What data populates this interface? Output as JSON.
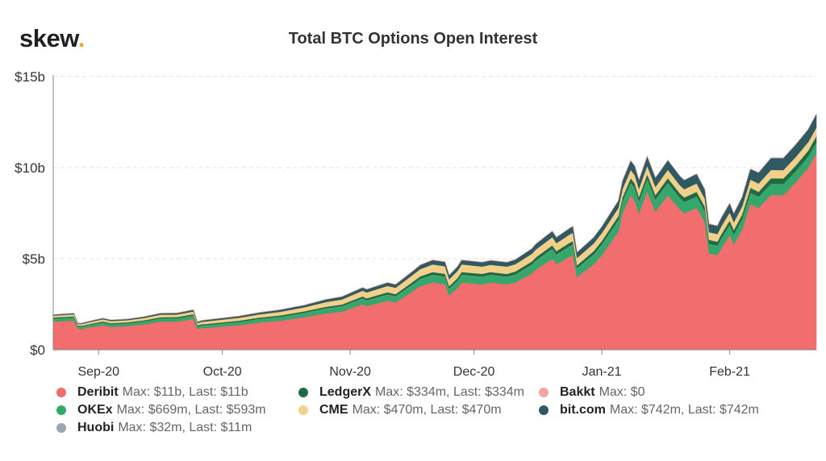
{
  "logo": {
    "text": "skew",
    "dot": "."
  },
  "chart_data": {
    "type": "area",
    "stacked": true,
    "title": "Total BTC Options Open Interest",
    "y_ticks": [
      "$0",
      "$5b",
      "$10b",
      "$15b"
    ],
    "y_tick_values": [
      0,
      5,
      10,
      15
    ],
    "ylim": [
      0,
      15
    ],
    "y_unit": "billions USD",
    "x_ticks": [
      "Sep-20",
      "Oct-20",
      "Nov-20",
      "Dec-20",
      "Jan-21",
      "Feb-21"
    ],
    "x_tick_dates": [
      "2020-09-01",
      "2020-10-01",
      "2020-11-01",
      "2020-12-01",
      "2021-01-01",
      "2021-02-01"
    ],
    "xlim": [
      "2020-08-21",
      "2021-02-22"
    ],
    "grid": true,
    "legend_position": "bottom",
    "x": [
      "2020-08-21",
      "2020-08-26",
      "2020-08-27",
      "2020-08-28",
      "2020-08-29",
      "2020-09-02",
      "2020-09-04",
      "2020-09-08",
      "2020-09-12",
      "2020-09-16",
      "2020-09-20",
      "2020-09-24",
      "2020-09-25",
      "2020-09-26",
      "2020-09-27",
      "2020-10-05",
      "2020-10-10",
      "2020-10-15",
      "2020-10-21",
      "2020-10-26",
      "2020-10-30",
      "2020-11-04",
      "2020-11-05",
      "2020-11-10",
      "2020-11-12",
      "2020-11-16",
      "2020-11-18",
      "2020-11-21",
      "2020-11-24",
      "2020-11-25",
      "2020-11-27",
      "2020-11-28",
      "2020-12-03",
      "2020-12-05",
      "2020-12-09",
      "2020-12-11",
      "2020-12-15",
      "2020-12-16",
      "2020-12-20",
      "2020-12-21",
      "2020-12-24",
      "2020-12-25",
      "2020-12-26",
      "2020-12-30",
      "2021-01-01",
      "2021-01-05",
      "2021-01-06",
      "2021-01-08",
      "2021-01-09",
      "2021-01-10",
      "2021-01-12",
      "2021-01-14",
      "2021-01-15",
      "2021-01-17",
      "2021-01-20",
      "2021-01-21",
      "2021-01-24",
      "2021-01-26",
      "2021-01-27",
      "2021-01-29",
      "2021-01-30",
      "2021-02-01",
      "2021-02-02",
      "2021-02-04",
      "2021-02-06",
      "2021-02-08",
      "2021-02-11",
      "2021-02-14",
      "2021-02-17",
      "2021-02-20",
      "2021-02-22"
    ],
    "series": [
      {
        "name": "Deribit",
        "color": "#f26d6d",
        "values": [
          1.55,
          1.6,
          1.15,
          1.15,
          1.2,
          1.35,
          1.25,
          1.3,
          1.4,
          1.55,
          1.55,
          1.7,
          1.15,
          1.2,
          1.2,
          1.35,
          1.5,
          1.6,
          1.8,
          2.0,
          2.1,
          2.5,
          2.4,
          2.7,
          2.6,
          3.2,
          3.5,
          3.7,
          3.6,
          3.0,
          3.4,
          3.7,
          3.6,
          3.7,
          3.6,
          3.7,
          4.2,
          4.4,
          5.0,
          4.7,
          5.1,
          5.2,
          4.0,
          4.7,
          5.2,
          6.5,
          7.5,
          8.5,
          8.2,
          7.5,
          8.7,
          7.6,
          7.9,
          8.5,
          7.7,
          7.5,
          7.8,
          7.0,
          5.3,
          5.2,
          5.6,
          6.3,
          5.8,
          6.6,
          8.0,
          7.8,
          8.5,
          8.5,
          9.2,
          10.0,
          10.8
        ]
      },
      {
        "name": "OKEx",
        "color": "#33a86a",
        "values": [
          0.16,
          0.17,
          0.12,
          0.12,
          0.12,
          0.14,
          0.14,
          0.14,
          0.15,
          0.16,
          0.17,
          0.18,
          0.13,
          0.14,
          0.15,
          0.17,
          0.19,
          0.2,
          0.22,
          0.25,
          0.27,
          0.3,
          0.3,
          0.32,
          0.32,
          0.36,
          0.38,
          0.4,
          0.4,
          0.35,
          0.38,
          0.4,
          0.4,
          0.4,
          0.4,
          0.42,
          0.45,
          0.47,
          0.52,
          0.5,
          0.53,
          0.55,
          0.45,
          0.5,
          0.55,
          0.6,
          0.62,
          0.65,
          0.65,
          0.63,
          0.66,
          0.62,
          0.63,
          0.64,
          0.6,
          0.6,
          0.6,
          0.58,
          0.5,
          0.5,
          0.52,
          0.54,
          0.52,
          0.55,
          0.6,
          0.58,
          0.6,
          0.6,
          0.6,
          0.6,
          0.59
        ]
      },
      {
        "name": "Huobi",
        "color": "#9aa6ad",
        "values": [
          0.01,
          0.01,
          0.01,
          0.01,
          0.01,
          0.01,
          0.01,
          0.01,
          0.01,
          0.01,
          0.01,
          0.01,
          0.01,
          0.01,
          0.01,
          0.01,
          0.01,
          0.01,
          0.02,
          0.02,
          0.02,
          0.02,
          0.02,
          0.02,
          0.02,
          0.02,
          0.02,
          0.02,
          0.02,
          0.02,
          0.02,
          0.02,
          0.02,
          0.02,
          0.02,
          0.02,
          0.03,
          0.03,
          0.03,
          0.03,
          0.03,
          0.03,
          0.03,
          0.03,
          0.03,
          0.03,
          0.03,
          0.03,
          0.03,
          0.03,
          0.03,
          0.03,
          0.03,
          0.03,
          0.02,
          0.02,
          0.02,
          0.02,
          0.02,
          0.02,
          0.02,
          0.02,
          0.02,
          0.02,
          0.02,
          0.02,
          0.02,
          0.01,
          0.01,
          0.01,
          0.01
        ]
      },
      {
        "name": "LedgerX",
        "color": "#1f6b45",
        "values": [
          0.06,
          0.06,
          0.05,
          0.05,
          0.05,
          0.06,
          0.06,
          0.06,
          0.06,
          0.07,
          0.07,
          0.07,
          0.06,
          0.06,
          0.06,
          0.07,
          0.07,
          0.08,
          0.08,
          0.09,
          0.1,
          0.11,
          0.11,
          0.12,
          0.12,
          0.13,
          0.14,
          0.15,
          0.15,
          0.13,
          0.14,
          0.15,
          0.15,
          0.15,
          0.15,
          0.16,
          0.17,
          0.18,
          0.19,
          0.19,
          0.2,
          0.2,
          0.17,
          0.19,
          0.2,
          0.22,
          0.23,
          0.25,
          0.25,
          0.24,
          0.26,
          0.25,
          0.25,
          0.26,
          0.25,
          0.25,
          0.26,
          0.25,
          0.22,
          0.22,
          0.23,
          0.25,
          0.24,
          0.26,
          0.28,
          0.28,
          0.3,
          0.3,
          0.31,
          0.32,
          0.33
        ]
      },
      {
        "name": "CME",
        "color": "#f2d08a",
        "values": [
          0.1,
          0.11,
          0.09,
          0.09,
          0.1,
          0.12,
          0.12,
          0.12,
          0.13,
          0.14,
          0.14,
          0.15,
          0.12,
          0.13,
          0.14,
          0.16,
          0.18,
          0.2,
          0.22,
          0.26,
          0.28,
          0.32,
          0.32,
          0.35,
          0.35,
          0.38,
          0.4,
          0.42,
          0.42,
          0.38,
          0.4,
          0.42,
          0.4,
          0.4,
          0.4,
          0.4,
          0.42,
          0.43,
          0.45,
          0.44,
          0.45,
          0.45,
          0.4,
          0.42,
          0.44,
          0.44,
          0.45,
          0.46,
          0.46,
          0.45,
          0.46,
          0.45,
          0.45,
          0.46,
          0.45,
          0.45,
          0.46,
          0.44,
          0.42,
          0.42,
          0.43,
          0.44,
          0.43,
          0.44,
          0.45,
          0.45,
          0.46,
          0.46,
          0.47,
          0.47,
          0.47
        ]
      },
      {
        "name": "bit.com",
        "color": "#2f5a63",
        "values": [
          0.05,
          0.06,
          0.05,
          0.05,
          0.05,
          0.06,
          0.06,
          0.06,
          0.07,
          0.08,
          0.08,
          0.09,
          0.07,
          0.07,
          0.08,
          0.09,
          0.1,
          0.11,
          0.12,
          0.14,
          0.15,
          0.17,
          0.17,
          0.18,
          0.18,
          0.2,
          0.22,
          0.24,
          0.24,
          0.22,
          0.23,
          0.24,
          0.24,
          0.24,
          0.24,
          0.25,
          0.28,
          0.3,
          0.33,
          0.32,
          0.34,
          0.35,
          0.3,
          0.33,
          0.35,
          0.4,
          0.45,
          0.5,
          0.5,
          0.48,
          0.52,
          0.5,
          0.5,
          0.52,
          0.5,
          0.5,
          0.52,
          0.5,
          0.45,
          0.45,
          0.47,
          0.5,
          0.48,
          0.52,
          0.58,
          0.6,
          0.65,
          0.66,
          0.68,
          0.7,
          0.74
        ]
      },
      {
        "name": "Bakkt",
        "color": "#f4a3a3",
        "values": [
          0,
          0,
          0,
          0,
          0,
          0,
          0,
          0,
          0,
          0,
          0,
          0,
          0,
          0,
          0,
          0,
          0,
          0,
          0,
          0,
          0,
          0,
          0,
          0,
          0,
          0,
          0,
          0,
          0,
          0,
          0,
          0,
          0,
          0,
          0,
          0,
          0,
          0,
          0,
          0,
          0,
          0,
          0,
          0,
          0,
          0,
          0,
          0,
          0,
          0,
          0,
          0,
          0,
          0,
          0,
          0,
          0,
          0,
          0,
          0,
          0,
          0,
          0,
          0,
          0,
          0,
          0,
          0,
          0,
          0,
          0
        ]
      }
    ]
  },
  "legend": [
    {
      "name": "Deribit",
      "stats": "Max: $11b, Last: $11b",
      "color": "#f26d6d"
    },
    {
      "name": "LedgerX",
      "stats": "Max: $334m, Last: $334m",
      "color": "#1f6b45"
    },
    {
      "name": "Bakkt",
      "stats": "Max: $0",
      "color": "#f4a3a3"
    },
    {
      "name": "OKEx",
      "stats": "Max: $669m, Last: $593m",
      "color": "#33a86a"
    },
    {
      "name": "CME",
      "stats": "Max: $470m, Last: $470m",
      "color": "#f2d08a"
    },
    {
      "name": "bit.com",
      "stats": "Max: $742m, Last: $742m",
      "color": "#2f5a63"
    },
    {
      "name": "Huobi",
      "stats": "Max: $32m, Last: $11m",
      "color": "#9aa6ad"
    }
  ]
}
